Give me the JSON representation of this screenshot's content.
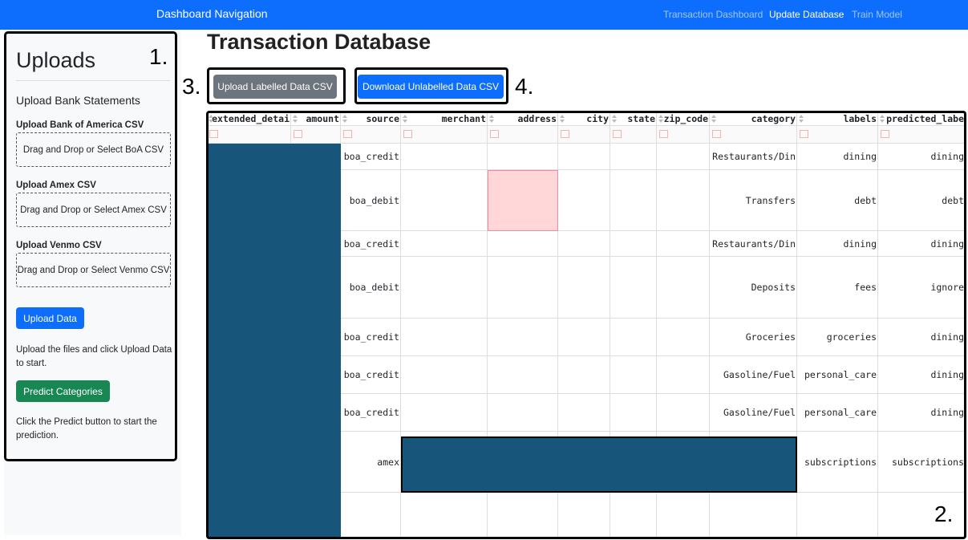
{
  "nav": {
    "brand": "Dashboard Navigation",
    "links": [
      "Transaction Dashboard",
      "Update Database",
      "Train Model"
    ]
  },
  "sidebar": {
    "title": "Uploads",
    "subtitle": "Upload Bank Statements",
    "uploads": [
      {
        "label": "Upload Bank of America CSV",
        "dropzone": "Drag and Drop or Select BoA CSV"
      },
      {
        "label": "Upload Amex CSV",
        "dropzone": "Drag and Drop or Select Amex CSV"
      },
      {
        "label": "Upload Venmo CSV",
        "dropzone": "Drag and Drop or Select Venmo CSV"
      }
    ],
    "upload_button": "Upload Data",
    "upload_help": "Upload the files and click Upload Data to start.",
    "predict_button": "Predict Categories",
    "predict_help": "Click the Predict button to start the prediction."
  },
  "main": {
    "title": "Transaction Database",
    "upload_button": "Upload Labelled Data CSV",
    "download_button": "Download Unlabelled Data CSV"
  },
  "annotations": [
    "1.",
    "2.",
    "3.",
    "4."
  ],
  "table": {
    "columns": [
      "extended_detai",
      "amount",
      "source",
      "merchant",
      "address",
      "city",
      "state",
      "zip_code",
      "category",
      "labels",
      "predicted_labe"
    ],
    "rows": [
      {
        "source": "boa_credit",
        "category": "Restaurants/Din",
        "labels": "dining",
        "predicted_label": "dining"
      },
      {
        "source": "boa_debit",
        "category": "Transfers",
        "labels": "debt",
        "predicted_label": "debt"
      },
      {
        "source": "boa_credit",
        "category": "Restaurants/Din",
        "labels": "dining",
        "predicted_label": "dining"
      },
      {
        "source": "boa_debit",
        "category": "Deposits",
        "labels": "fees",
        "predicted_label": "ignore"
      },
      {
        "source": "boa_credit",
        "category": "Groceries",
        "labels": "groceries",
        "predicted_label": "dining"
      },
      {
        "source": "boa_credit",
        "category": "Gasoline/Fuel",
        "labels": "personal_care",
        "predicted_label": "dining"
      },
      {
        "source": "boa_credit",
        "category": "Gasoline/Fuel",
        "labels": "personal_care",
        "predicted_label": "dining"
      },
      {
        "source": "amex",
        "labels": "subscriptions",
        "predicted_label": "subscriptions"
      }
    ]
  }
}
